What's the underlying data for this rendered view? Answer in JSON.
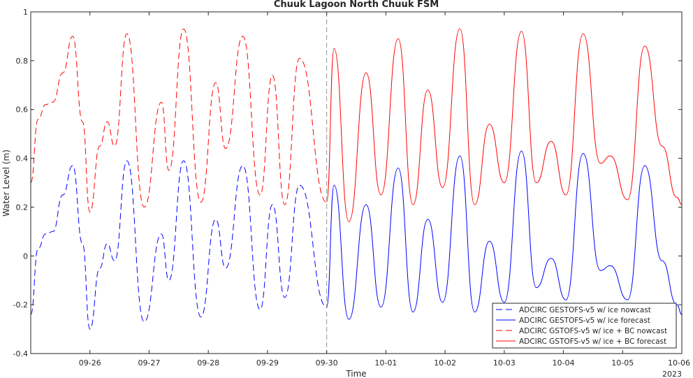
{
  "chart_data": {
    "type": "line",
    "title": "Chuuk Lagoon North Chuuk FSM",
    "xlabel": "Time",
    "ylabel": "Water Level (m)",
    "year_label": "2023",
    "xlim": [
      "2023-09-25T00:00",
      "2023-10-06T00:00"
    ],
    "ylim": [
      -0.4,
      1.0
    ],
    "x_ticks": [
      "09-26",
      "09-27",
      "09-28",
      "09-29",
      "09-30",
      "10-01",
      "10-02",
      "10-03",
      "10-04",
      "10-05",
      "10-06"
    ],
    "y_ticks": [
      "-0.4",
      "-0.2",
      "0",
      "0.2",
      "0.4",
      "0.6",
      "0.8",
      "1"
    ],
    "grid": false,
    "nowcast_forecast_divider": "2023-09-30T00:00",
    "legend_position": "bottom-right",
    "series": [
      {
        "name": "ADCIRC GESTOFS-v5 w/ ice nowcast",
        "color": "#0000ff",
        "dash": "dashed",
        "points": [
          [
            "2023-09-25T00:00",
            -0.24
          ],
          [
            "2023-09-25T03:00",
            0.03
          ],
          [
            "2023-09-25T06:00",
            0.09
          ],
          [
            "2023-09-25T09:00",
            0.1
          ],
          [
            "2023-09-25T13:00",
            0.25
          ],
          [
            "2023-09-25T17:00",
            0.37
          ],
          [
            "2023-09-25T21:00",
            0.05
          ],
          [
            "2023-09-26T00:00",
            -0.3
          ],
          [
            "2023-09-26T04:00",
            -0.05
          ],
          [
            "2023-09-26T07:00",
            0.05
          ],
          [
            "2023-09-26T10:00",
            -0.02
          ],
          [
            "2023-09-26T15:00",
            0.39
          ],
          [
            "2023-09-26T22:00",
            -0.27
          ],
          [
            "2023-09-27T05:00",
            0.09
          ],
          [
            "2023-09-27T08:00",
            -0.1
          ],
          [
            "2023-09-27T14:00",
            0.39
          ],
          [
            "2023-09-27T21:00",
            -0.25
          ],
          [
            "2023-09-28T03:00",
            0.15
          ],
          [
            "2023-09-28T07:00",
            -0.05
          ],
          [
            "2023-09-28T14:00",
            0.37
          ],
          [
            "2023-09-28T21:00",
            -0.22
          ],
          [
            "2023-09-29T02:00",
            0.21
          ],
          [
            "2023-09-29T07:00",
            -0.17
          ],
          [
            "2023-09-29T13:00",
            0.29
          ],
          [
            "2023-09-30T00:00",
            -0.21
          ]
        ]
      },
      {
        "name": "ADCIRC GESTOFS-v5 w/ ice forecast",
        "color": "#0000ff",
        "dash": "solid",
        "points": [
          [
            "2023-09-30T00:00",
            -0.21
          ],
          [
            "2023-09-30T03:00",
            0.29
          ],
          [
            "2023-09-30T09:00",
            -0.26
          ],
          [
            "2023-09-30T16:00",
            0.21
          ],
          [
            "2023-09-30T22:00",
            -0.21
          ],
          [
            "2023-10-01T05:00",
            0.36
          ],
          [
            "2023-10-01T11:00",
            -0.23
          ],
          [
            "2023-10-01T17:00",
            0.15
          ],
          [
            "2023-10-01T23:00",
            -0.19
          ],
          [
            "2023-10-02T06:00",
            0.41
          ],
          [
            "2023-10-02T12:00",
            -0.23
          ],
          [
            "2023-10-02T18:00",
            0.06
          ],
          [
            "2023-10-03T00:00",
            -0.19
          ],
          [
            "2023-10-03T07:00",
            0.43
          ],
          [
            "2023-10-03T13:00",
            -0.13
          ],
          [
            "2023-10-03T19:00",
            -0.01
          ],
          [
            "2023-10-04T01:00",
            -0.18
          ],
          [
            "2023-10-04T08:00",
            0.42
          ],
          [
            "2023-10-04T15:00",
            -0.06
          ],
          [
            "2023-10-04T19:00",
            -0.04
          ],
          [
            "2023-10-05T02:00",
            -0.18
          ],
          [
            "2023-10-05T09:00",
            0.37
          ],
          [
            "2023-10-05T16:00",
            -0.02
          ],
          [
            "2023-10-05T22:00",
            -0.2
          ],
          [
            "2023-10-06T00:00",
            -0.24
          ]
        ]
      },
      {
        "name": "ADCIRC GSTOFS-v5 w/ ice + BC nowcast",
        "color": "#ff0000",
        "dash": "dashed",
        "points": [
          [
            "2023-09-25T00:00",
            0.3
          ],
          [
            "2023-09-25T03:00",
            0.56
          ],
          [
            "2023-09-25T06:00",
            0.62
          ],
          [
            "2023-09-25T09:00",
            0.63
          ],
          [
            "2023-09-25T13:00",
            0.75
          ],
          [
            "2023-09-25T17:00",
            0.9
          ],
          [
            "2023-09-25T21:00",
            0.55
          ],
          [
            "2023-09-26T00:00",
            0.18
          ],
          [
            "2023-09-26T04:00",
            0.45
          ],
          [
            "2023-09-26T07:00",
            0.55
          ],
          [
            "2023-09-26T10:00",
            0.45
          ],
          [
            "2023-09-26T15:00",
            0.91
          ],
          [
            "2023-09-26T22:00",
            0.2
          ],
          [
            "2023-09-27T05:00",
            0.63
          ],
          [
            "2023-09-27T08:00",
            0.35
          ],
          [
            "2023-09-27T14:00",
            0.93
          ],
          [
            "2023-09-27T21:00",
            0.22
          ],
          [
            "2023-09-28T03:00",
            0.71
          ],
          [
            "2023-09-28T07:00",
            0.44
          ],
          [
            "2023-09-28T14:00",
            0.9
          ],
          [
            "2023-09-28T21:00",
            0.25
          ],
          [
            "2023-09-29T02:00",
            0.74
          ],
          [
            "2023-09-29T07:00",
            0.21
          ],
          [
            "2023-09-29T13:00",
            0.81
          ],
          [
            "2023-09-30T00:00",
            0.22
          ]
        ]
      },
      {
        "name": "ADCIRC GSTOFS-v5 w/ ice + BC forecast",
        "color": "#ff0000",
        "dash": "solid",
        "points": [
          [
            "2023-09-30T00:00",
            0.22
          ],
          [
            "2023-09-30T03:00",
            0.85
          ],
          [
            "2023-09-30T09:00",
            0.14
          ],
          [
            "2023-09-30T16:00",
            0.75
          ],
          [
            "2023-09-30T22:00",
            0.25
          ],
          [
            "2023-10-01T05:00",
            0.89
          ],
          [
            "2023-10-01T11:00",
            0.21
          ],
          [
            "2023-10-01T17:00",
            0.68
          ],
          [
            "2023-10-01T23:00",
            0.28
          ],
          [
            "2023-10-02T06:00",
            0.93
          ],
          [
            "2023-10-02T12:00",
            0.21
          ],
          [
            "2023-10-02T18:00",
            0.54
          ],
          [
            "2023-10-03T00:00",
            0.3
          ],
          [
            "2023-10-03T07:00",
            0.92
          ],
          [
            "2023-10-03T13:00",
            0.3
          ],
          [
            "2023-10-03T19:00",
            0.47
          ],
          [
            "2023-10-04T01:00",
            0.25
          ],
          [
            "2023-10-04T08:00",
            0.91
          ],
          [
            "2023-10-04T15:00",
            0.38
          ],
          [
            "2023-10-04T19:00",
            0.41
          ],
          [
            "2023-10-05T02:00",
            0.23
          ],
          [
            "2023-10-05T09:00",
            0.86
          ],
          [
            "2023-10-05T16:00",
            0.45
          ],
          [
            "2023-10-05T22:00",
            0.24
          ],
          [
            "2023-10-06T00:00",
            0.21
          ]
        ]
      }
    ]
  }
}
